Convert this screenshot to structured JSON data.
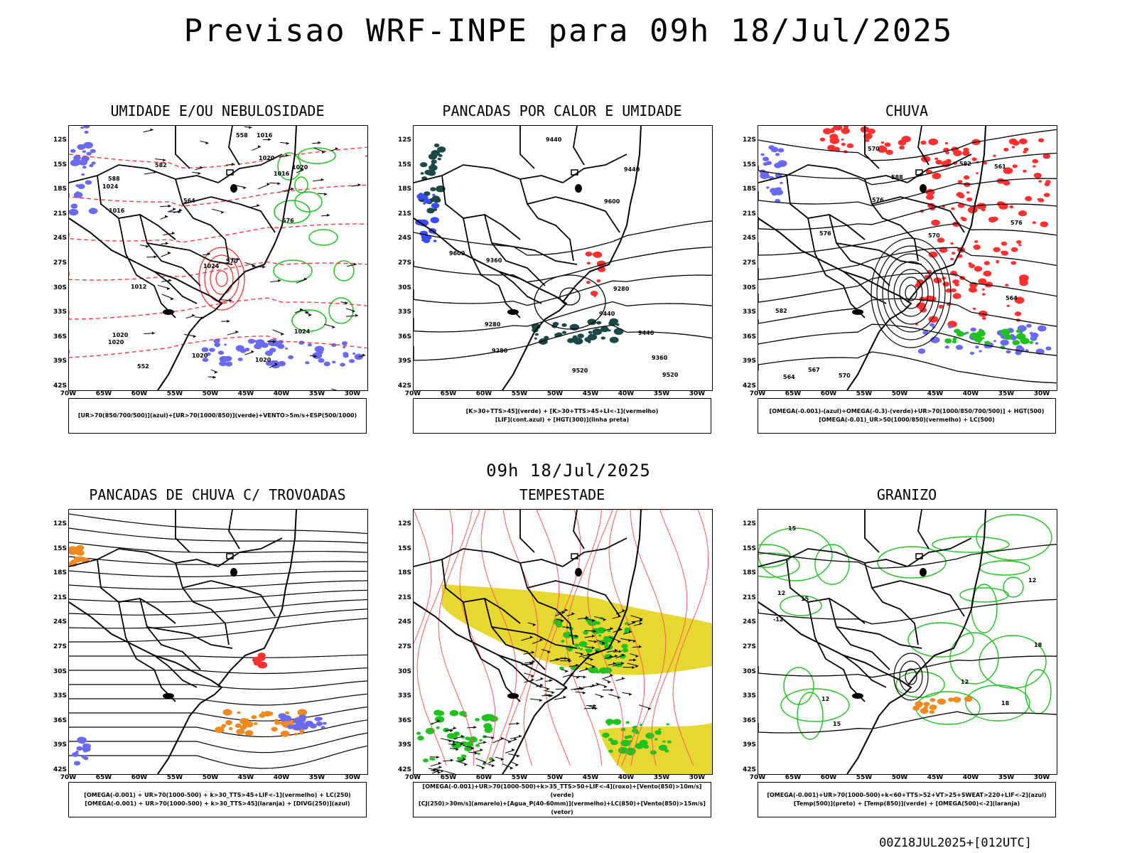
{
  "header": {
    "title": "Previsao WRF-INPE  para 09h 18/Jul/2025"
  },
  "mid_title": "09h 18/Jul/2025",
  "footer": "00Z18JUL2025+[012UTC]",
  "lat_labels": [
    "12S",
    "15S",
    "18S",
    "21S",
    "24S",
    "27S",
    "30S",
    "33S",
    "36S",
    "39S",
    "42S"
  ],
  "lon_labels": [
    "70W",
    "65W",
    "60W",
    "55W",
    "50W",
    "45W",
    "40W",
    "35W",
    "30W"
  ],
  "panels": [
    {
      "title": "UMIDADE E/OU NEBULOSIDADE",
      "legend": [
        "[UR>70(850/700/500)](azul)+[UR>70(1000/850)](verde)+VENTO>5m/s+ESP(500/1000)"
      ]
    },
    {
      "title": "PANCADAS POR CALOR E UMIDADE",
      "legend": [
        "[K>30+TTS>45](verde) + [K>30+TTS>45+LI<-1](vermelho)",
        "[LIF](cont.azul) + [HGT(300)](linha preta)"
      ]
    },
    {
      "title": "CHUVA",
      "legend": [
        "[OMEGA(-0.001)-(azul)+OMEGA(-0.3)-(verde)+UR>70(1000/850/700/500)] + HGT(500)",
        "[OMEGA(-0.01)_UR>50(1000/850)(vermelho) + LC(500)"
      ]
    },
    {
      "title": "PANCADAS DE CHUVA C/ TROVOADAS",
      "legend": [
        "[OMEGA(-0.001) + UR>70(1000-500) + k>30_TTS>45+LIF<-1](vermelho) + LC(250)",
        "[OMEGA(-0.001) + UR>70(1000-500) + k>30_TTS>45](laranja) + [DIVG(250)](azul)"
      ]
    },
    {
      "title": "TEMPESTADE",
      "legend": [
        "[OMEGA(-0.001)+UR>70(1000-500)+k>35_TTS>50+LIF<-4](roxo)+[Vento(850)>10m/s](verde)",
        "[CJ(250)>30m/s](amarelo)+[Agua_P(40-60mm)](vermelho)+LC(850)+[Vento(850)>15m/s](vetor)"
      ]
    },
    {
      "title": "GRANIZO",
      "legend": [
        "[OMEGA(-0.001)+UR>70(1000-500)+k<60+TTS>52+VT>25+SWEAT>220+LIF<-2](azul)",
        "[Temp(500)](preto) + [Temp(850)](verde) + [OMEGA(500)<-2](laranja)"
      ]
    }
  ],
  "contour_labels": {
    "p0": [
      "1020",
      "1024",
      "1020",
      "1020",
      "1024",
      "1024",
      "1020",
      "1016",
      "1020",
      "1016",
      "1012",
      "1016",
      "1020",
      "570",
      "576",
      "582",
      "588",
      "564",
      "558",
      "552"
    ],
    "p1": [
      "9600",
      "9440",
      "9520",
      "9600",
      "9520",
      "9440",
      "9360",
      "9440",
      "9360",
      "9280",
      "9280",
      "9280",
      "9440"
    ],
    "p2": [
      "588",
      "582",
      "576",
      "570",
      "564",
      "582",
      "576",
      "570",
      "567",
      "561",
      "576",
      "570",
      "564"
    ],
    "p5": [
      "12",
      "15",
      "18",
      "12",
      "12",
      "15",
      "18",
      "15",
      "12",
      "-12"
    ]
  },
  "colors": {
    "blue": "#6a6af0",
    "green": "#1fc21f",
    "red": "#ff3030",
    "orange": "#f08a20",
    "yellow": "#e6d830",
    "darkteal": "#1d4848",
    "black": "#000000"
  }
}
